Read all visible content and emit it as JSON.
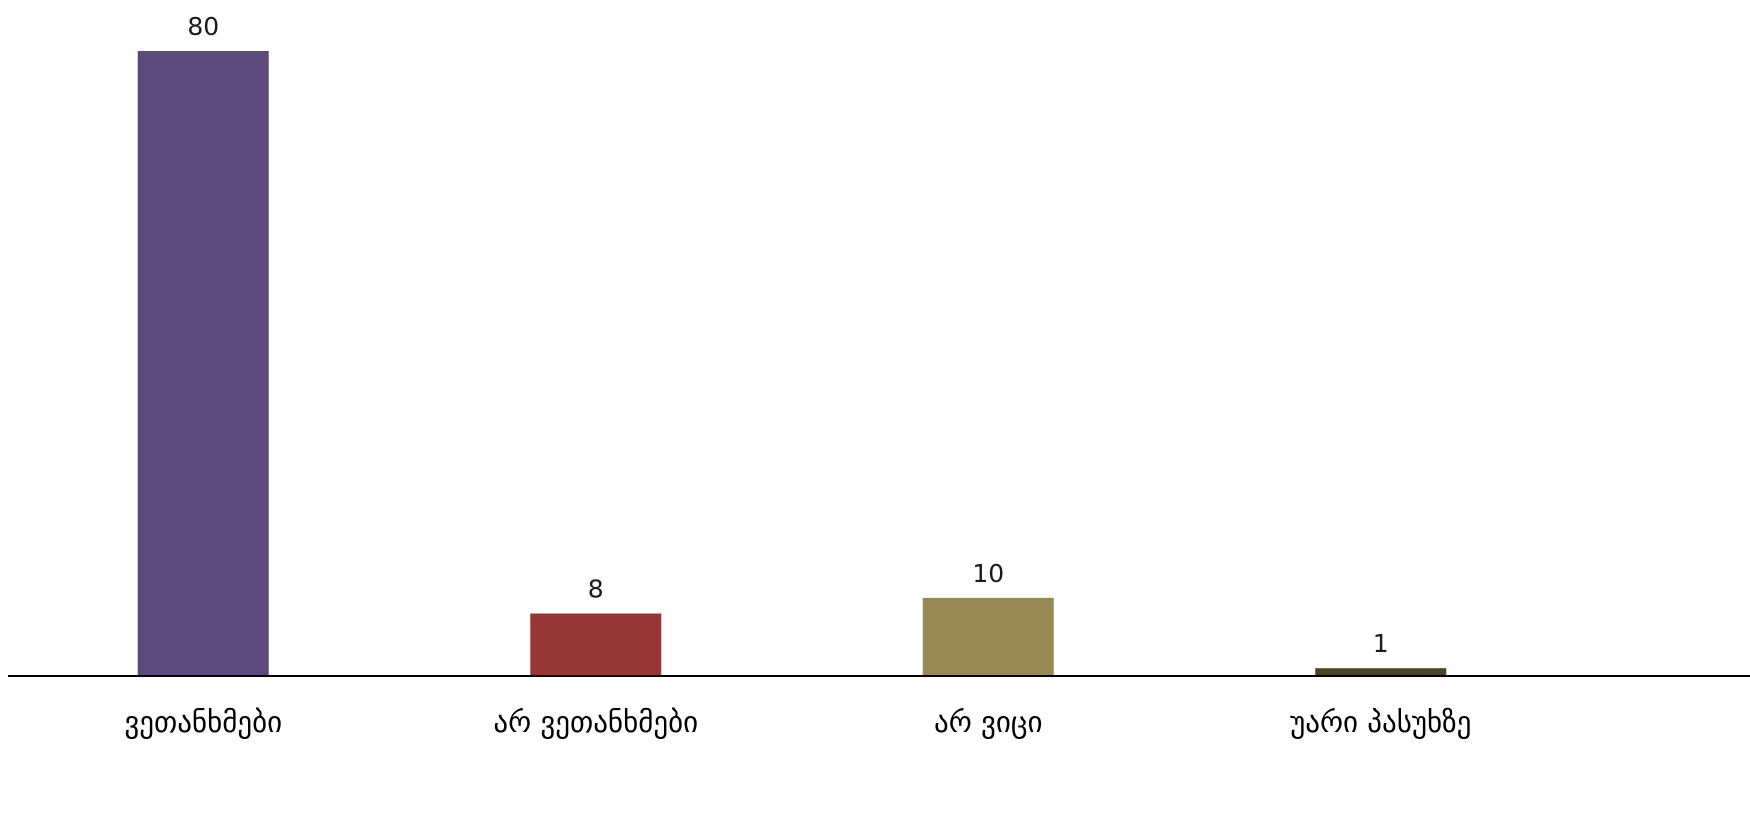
{
  "chart_data": {
    "type": "bar",
    "categories": [
      "ვეთანხმები",
      "არ ვეთანხმები",
      "არ ვიცი",
      "უარი პასუხზე"
    ],
    "values": [
      80,
      8,
      10,
      1
    ],
    "colors": [
      "#5e4a7a",
      "#963635",
      "#968a52",
      "#4a4525"
    ],
    "ylim": [
      0,
      80
    ],
    "grid": false,
    "legend": "none",
    "title": "",
    "xlabel": "",
    "ylabel": ""
  }
}
